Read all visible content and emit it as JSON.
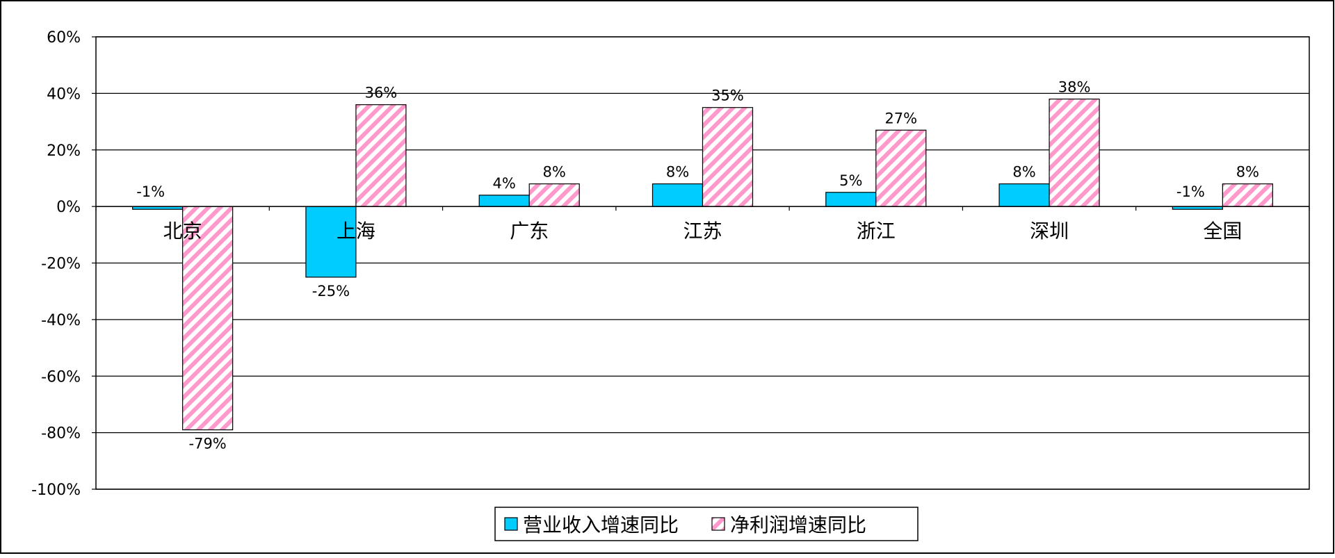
{
  "chart_data": {
    "type": "bar",
    "categories": [
      "北京",
      "上海",
      "广东",
      "江苏",
      "浙江",
      "深圳",
      "全国"
    ],
    "series": [
      {
        "name": "营业收入增速同比",
        "values": [
          -1,
          -25,
          4,
          8,
          5,
          8,
          -1
        ],
        "labels": [
          "-1%",
          "-25%",
          "4%",
          "8%",
          "5%",
          "8%",
          "-1%"
        ],
        "color": "#00ccff",
        "pattern": "solid"
      },
      {
        "name": "净利润增速同比",
        "values": [
          -79,
          36,
          8,
          35,
          27,
          38,
          8
        ],
        "labels": [
          "-79%",
          "36%",
          "8%",
          "35%",
          "27%",
          "38%",
          "8%"
        ],
        "color": "#ff99cc",
        "pattern": "diagonal-stripes"
      }
    ],
    "y_ticks": [
      60,
      40,
      20,
      0,
      -20,
      -40,
      -60,
      -80,
      -100
    ],
    "y_tick_labels": [
      "60%",
      "40%",
      "20%",
      "0%",
      "-20%",
      "-40%",
      "-60%",
      "-80%",
      "-100%"
    ],
    "ylim": [
      -100,
      60
    ],
    "grid": true,
    "legend": "bottom"
  }
}
